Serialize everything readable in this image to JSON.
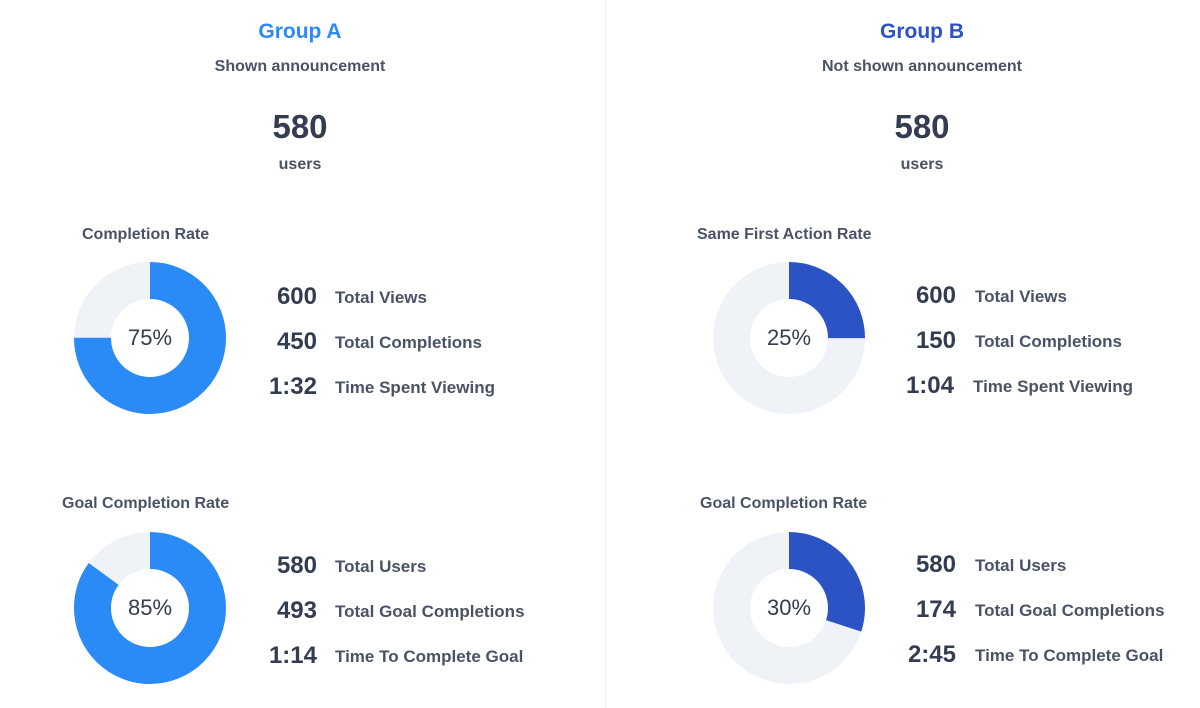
{
  "groups": [
    {
      "title": "Group A",
      "title_color": "#2a8af6",
      "subtitle": "Shown announcement",
      "users_count": "580",
      "users_label": "users",
      "sections": [
        {
          "title": "Completion Rate",
          "percent": 75,
          "percent_label": "75%",
          "ring_color": "#2a8af6",
          "track_color": "#eff2f7",
          "stats": [
            {
              "value": "600",
              "label": "Total Views"
            },
            {
              "value": "450",
              "label": "Total Completions"
            },
            {
              "value": "1:32",
              "label": "Time Spent Viewing"
            }
          ]
        },
        {
          "title": "Goal Completion Rate",
          "percent": 85,
          "percent_label": "85%",
          "ring_color": "#2a8af6",
          "track_color": "#eff2f7",
          "stats": [
            {
              "value": "580",
              "label": "Total Users"
            },
            {
              "value": "493",
              "label": "Total Goal Completions"
            },
            {
              "value": "1:14",
              "label": "Time To Complete Goal"
            }
          ]
        }
      ]
    },
    {
      "title": "Group B",
      "title_color": "#2c53c4",
      "subtitle": "Not shown announcement",
      "users_count": "580",
      "users_label": "users",
      "sections": [
        {
          "title": "Same First Action Rate",
          "percent": 25,
          "percent_label": "25%",
          "ring_color": "#2c53c4",
          "track_color": "#eff2f7",
          "stats": [
            {
              "value": "600",
              "label": "Total Views"
            },
            {
              "value": "150",
              "label": "Total Completions"
            },
            {
              "value": "1:04",
              "label": "Time Spent Viewing"
            }
          ]
        },
        {
          "title": "Goal Completion Rate",
          "percent": 30,
          "percent_label": "30%",
          "ring_color": "#2c53c4",
          "track_color": "#eff2f7",
          "stats": [
            {
              "value": "580",
              "label": "Total Users"
            },
            {
              "value": "174",
              "label": "Total Goal Completions"
            },
            {
              "value": "2:45",
              "label": "Time To Complete Goal"
            }
          ]
        }
      ]
    }
  ]
}
